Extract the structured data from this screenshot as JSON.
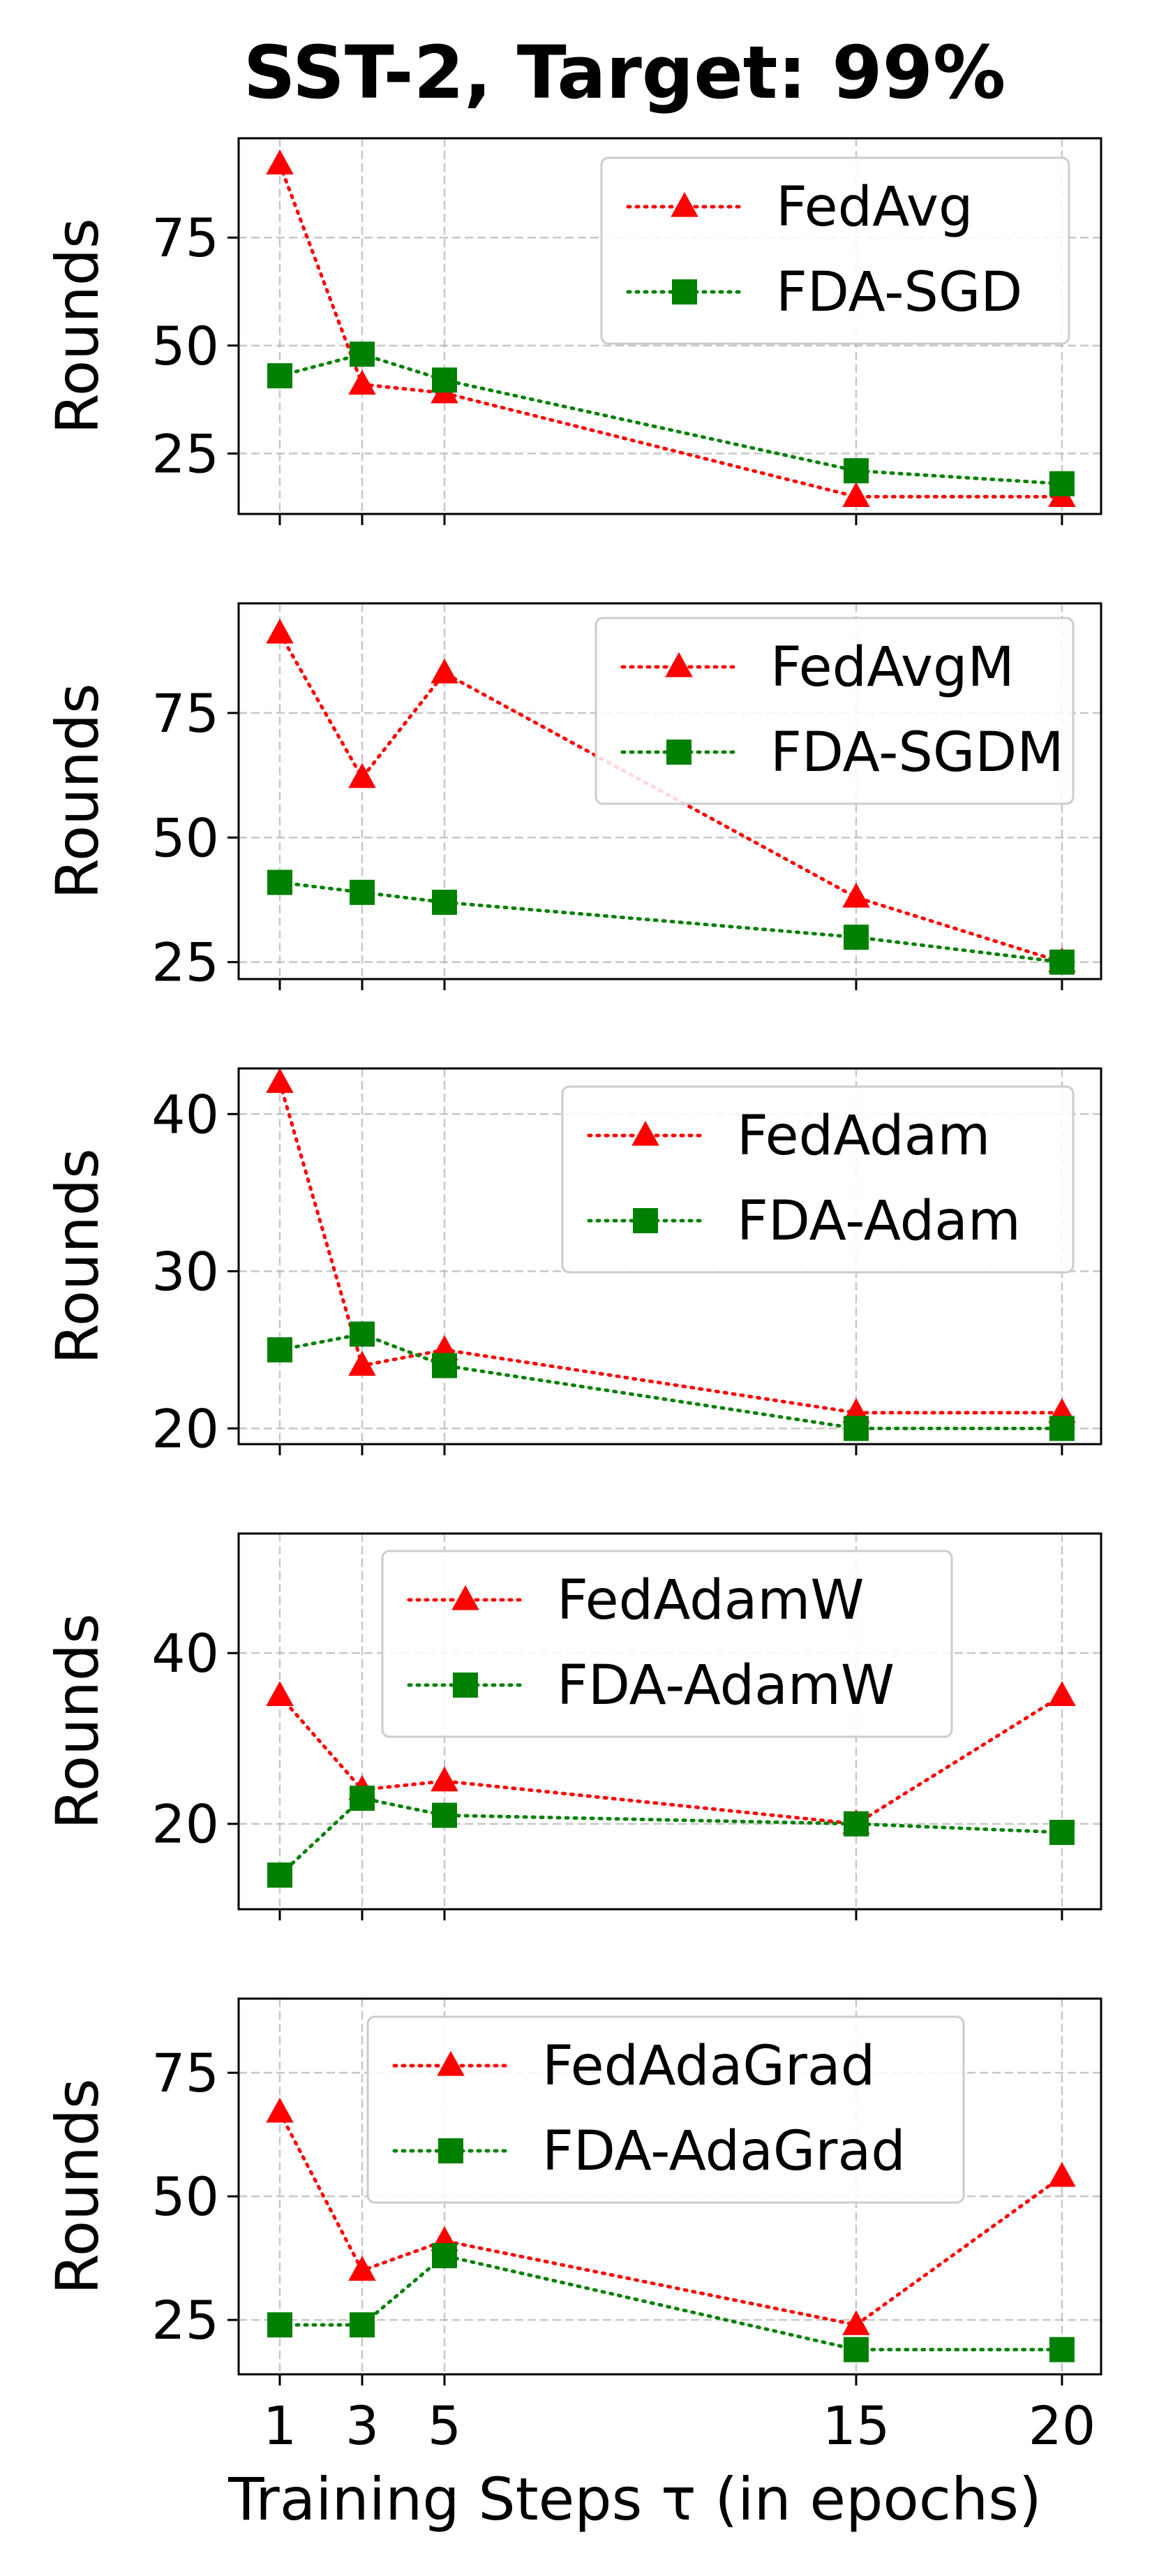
{
  "title": "SST-2, Target: 99%",
  "colors": {
    "fed": "#ff0000",
    "fda": "#008000",
    "grid": "#b0b0b0",
    "frame": "#000000",
    "legend_border": "#cccccc"
  },
  "chart_data": [
    {
      "type": "line",
      "title": "SST-2, Target: 99%",
      "xlabel": "",
      "ylabel": "Rounds",
      "x": [
        1,
        3,
        5,
        15,
        20
      ],
      "xlim": [
        0.0,
        20.95
      ],
      "ylim": [
        11,
        98
      ],
      "yticks": [
        25,
        50,
        75
      ],
      "grid": true,
      "legend": "top-right",
      "series": [
        {
          "name": "FedAvg",
          "marker": "triangle",
          "color": "fed",
          "values": [
            92,
            41,
            39,
            15,
            15
          ]
        },
        {
          "name": "FDA-SGD",
          "marker": "square",
          "color": "fda",
          "values": [
            43,
            48,
            42,
            21,
            18
          ]
        }
      ]
    },
    {
      "type": "line",
      "xlabel": "",
      "ylabel": "Rounds",
      "x": [
        1,
        3,
        5,
        15,
        20
      ],
      "xlim": [
        0.0,
        20.95
      ],
      "ylim": [
        21.6,
        97
      ],
      "yticks": [
        25,
        50,
        75
      ],
      "grid": true,
      "legend": "top-right",
      "series": [
        {
          "name": "FedAvgM",
          "marker": "triangle",
          "color": "fed",
          "values": [
            91,
            62,
            83,
            38,
            25
          ]
        },
        {
          "name": "FDA-SGDM",
          "marker": "square",
          "color": "fda",
          "values": [
            41,
            39,
            37,
            30,
            25
          ]
        }
      ]
    },
    {
      "type": "line",
      "xlabel": "",
      "ylabel": "Rounds",
      "x": [
        1,
        3,
        5,
        15,
        20
      ],
      "xlim": [
        0.0,
        20.95
      ],
      "ylim": [
        19.0,
        42.9
      ],
      "yticks": [
        20,
        30,
        40
      ],
      "grid": true,
      "legend": "top-right",
      "series": [
        {
          "name": "FedAdam",
          "marker": "triangle",
          "color": "fed",
          "values": [
            42,
            24,
            25,
            21,
            21
          ]
        },
        {
          "name": "FDA-Adam",
          "marker": "square",
          "color": "fda",
          "values": [
            25,
            26,
            24,
            20,
            20
          ]
        }
      ]
    },
    {
      "type": "line",
      "xlabel": "",
      "ylabel": "Rounds",
      "x": [
        1,
        3,
        5,
        15,
        20
      ],
      "xlim": [
        0.0,
        20.95
      ],
      "ylim": [
        10,
        54
      ],
      "yticks": [
        20,
        40
      ],
      "grid": true,
      "legend": "top-center",
      "series": [
        {
          "name": "FedAdamW",
          "marker": "triangle",
          "color": "fed",
          "values": [
            35,
            24,
            25,
            20,
            35
          ]
        },
        {
          "name": "FDA-AdamW",
          "marker": "square",
          "color": "fda",
          "values": [
            14,
            23,
            21,
            20,
            19
          ]
        }
      ]
    },
    {
      "type": "line",
      "xlabel": "Training Steps τ (in epochs)",
      "ylabel": "Rounds",
      "x": [
        1,
        3,
        5,
        15,
        20
      ],
      "xlim": [
        0.0,
        20.95
      ],
      "ylim": [
        14,
        90
      ],
      "yticks": [
        25,
        50,
        75
      ],
      "xticks": [
        1,
        3,
        5,
        15,
        20
      ],
      "grid": true,
      "legend": "top-center",
      "series": [
        {
          "name": "FedAdaGrad",
          "marker": "triangle",
          "color": "fed",
          "values": [
            67,
            35,
            41,
            24,
            54
          ]
        },
        {
          "name": "FDA-AdaGrad",
          "marker": "square",
          "color": "fda",
          "values": [
            24,
            24,
            38,
            19,
            19
          ]
        }
      ]
    }
  ]
}
